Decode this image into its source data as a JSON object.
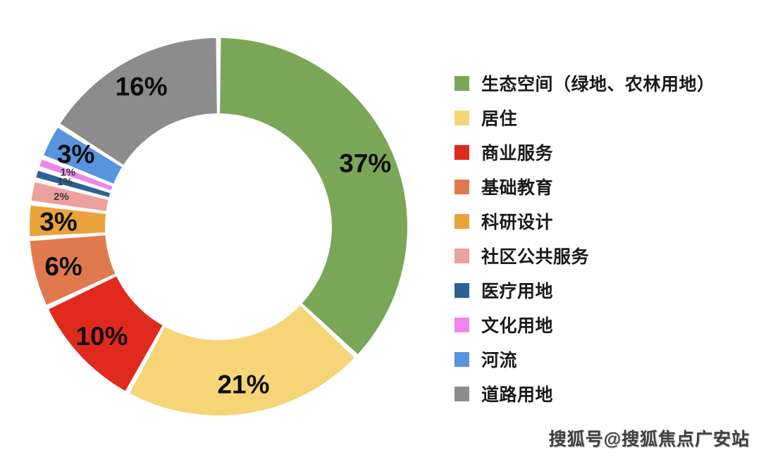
{
  "chart_data": {
    "type": "pie",
    "subtype": "donut",
    "title": "",
    "start_angle_deg": 0,
    "direction": "clockwise",
    "inner_radius_ratio": 0.6,
    "legend_position": "right",
    "slice_gap_deg": 1.5,
    "series": [
      {
        "label": "生态空间（绿地、农林用地）",
        "value": 37,
        "pct_label": "37%",
        "color": "#7AA757"
      },
      {
        "label": "居住",
        "value": 21,
        "pct_label": "21%",
        "color": "#F5D578"
      },
      {
        "label": "商业服务",
        "value": 10,
        "pct_label": "10%",
        "color": "#E02A1E"
      },
      {
        "label": "基础教育",
        "value": 6,
        "pct_label": "6%",
        "color": "#E07A4E"
      },
      {
        "label": "科研设计",
        "value": 3,
        "pct_label": "3%",
        "color": "#EAA23B"
      },
      {
        "label": "社区公共服务",
        "value": 2,
        "pct_label": "2%",
        "color": "#EDA0A0"
      },
      {
        "label": "医疗用地",
        "value": 1,
        "pct_label": "1%",
        "color": "#2C6296"
      },
      {
        "label": "文化用地",
        "value": 1,
        "pct_label": "1%",
        "color": "#EE86EA"
      },
      {
        "label": "河流",
        "value": 3,
        "pct_label": "3%",
        "color": "#5893DD"
      },
      {
        "label": "道路用地",
        "value": 16,
        "pct_label": "16%",
        "color": "#8C8C8C"
      }
    ]
  },
  "watermark": {
    "text": "搜狐号@搜狐焦点广安站"
  }
}
